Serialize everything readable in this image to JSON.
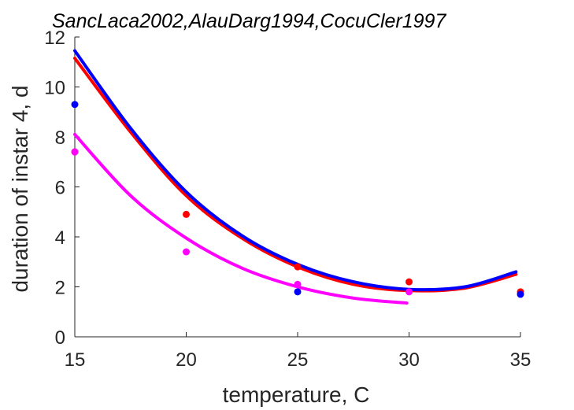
{
  "chart_data": {
    "type": "scatter",
    "title": "SancLaca2002,AlauDarg1994,CocuCler1997",
    "xlabel": "temperature, C",
    "ylabel": "duration of instar 4, d",
    "xlim": [
      15,
      35
    ],
    "ylim": [
      0,
      12
    ],
    "xticks": [
      "15",
      "20",
      "25",
      "30",
      "35"
    ],
    "yticks": [
      "0",
      "2",
      "4",
      "6",
      "8",
      "10",
      "12"
    ],
    "grid": false,
    "series": [
      {
        "color": "#ff0000",
        "points": [
          [
            15,
            7.4
          ],
          [
            20,
            4.9
          ],
          [
            25,
            2.8
          ],
          [
            30,
            2.2
          ],
          [
            35,
            1.8
          ]
        ],
        "curve": [
          [
            15,
            11.15
          ],
          [
            17.5,
            8.2
          ],
          [
            20,
            5.65
          ],
          [
            22.5,
            3.95
          ],
          [
            25,
            2.8
          ],
          [
            27.5,
            2.1
          ],
          [
            30,
            1.85
          ],
          [
            32.5,
            1.95
          ],
          [
            34.8,
            2.5
          ]
        ]
      },
      {
        "color": "#0000ff",
        "points": [
          [
            15,
            9.3
          ],
          [
            25,
            1.8
          ],
          [
            35,
            1.7
          ]
        ],
        "curve": [
          [
            15,
            11.45
          ],
          [
            17.5,
            8.35
          ],
          [
            20,
            5.8
          ],
          [
            22.5,
            4.05
          ],
          [
            25,
            2.9
          ],
          [
            27.5,
            2.2
          ],
          [
            30,
            1.9
          ],
          [
            32.5,
            2.0
          ],
          [
            34.8,
            2.6
          ]
        ]
      },
      {
        "color": "#ff00ff",
        "points": [
          [
            15,
            7.4
          ],
          [
            20,
            3.4
          ],
          [
            25,
            2.1
          ],
          [
            30,
            1.8
          ]
        ],
        "curve": [
          [
            15,
            8.1
          ],
          [
            17.5,
            5.65
          ],
          [
            20,
            3.95
          ],
          [
            22.5,
            2.75
          ],
          [
            25,
            2.0
          ],
          [
            27.5,
            1.55
          ],
          [
            29.9,
            1.35
          ]
        ]
      }
    ]
  }
}
